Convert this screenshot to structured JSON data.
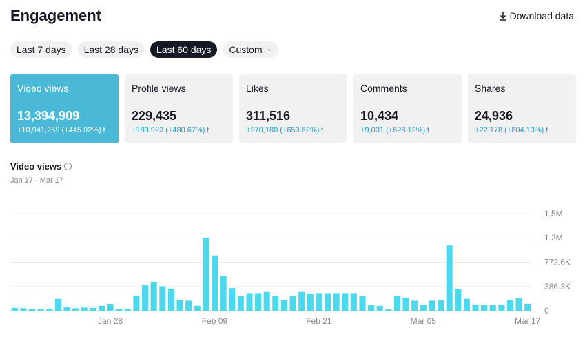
{
  "header": {
    "title": "Engagement",
    "download_label": "Download data"
  },
  "ranges": [
    {
      "label": "Last 7 days",
      "active": false
    },
    {
      "label": "Last 28 days",
      "active": false
    },
    {
      "label": "Last 60 days",
      "active": true
    },
    {
      "label": "Custom",
      "active": false
    }
  ],
  "cards": [
    {
      "label": "Video views",
      "value": "13,394,909",
      "delta": "+10,941,259 (+445.92%)",
      "active": true
    },
    {
      "label": "Profile views",
      "value": "229,435",
      "delta": "+189,923 (+480.67%)",
      "active": false
    },
    {
      "label": "Likes",
      "value": "311,516",
      "delta": "+270,180 (+653.62%)",
      "active": false
    },
    {
      "label": "Comments",
      "value": "10,434",
      "delta": "+9,001 (+628.12%)",
      "active": false
    },
    {
      "label": "Shares",
      "value": "24,936",
      "delta": "+22,178 (+804.13%)",
      "active": false
    }
  ],
  "chart_section": {
    "title": "Video views",
    "range": "Jan 17 - Mar 17"
  },
  "colors": {
    "accent": "#4ab9d7",
    "bar": "#4dd9ed",
    "delta": "#1a9fbf",
    "dark": "#161823"
  },
  "chart_data": {
    "type": "bar",
    "title": "Video views",
    "y_ticks": [
      "1.5M",
      "1.2M",
      "772.6K",
      "386.3K",
      "0"
    ],
    "y_tick_values": [
      1545200,
      1159000,
      772600,
      386300,
      0
    ],
    "ylim": [
      0,
      1545200
    ],
    "x_tick_labels": [
      "Jan 28",
      "Feb 09",
      "Feb 21",
      "Mar 05",
      "Mar 17"
    ],
    "x_tick_indices": [
      11,
      23,
      35,
      47,
      59
    ],
    "grid": true,
    "values": [
      45000,
      40000,
      30000,
      25000,
      28000,
      190000,
      65000,
      40000,
      50000,
      45000,
      80000,
      110000,
      30000,
      25000,
      240000,
      410000,
      460000,
      390000,
      340000,
      170000,
      160000,
      80000,
      1160000,
      880000,
      560000,
      360000,
      230000,
      280000,
      280000,
      300000,
      240000,
      170000,
      230000,
      300000,
      270000,
      280000,
      280000,
      280000,
      280000,
      280000,
      230000,
      90000,
      80000,
      30000,
      240000,
      210000,
      160000,
      95000,
      160000,
      170000,
      1040000,
      340000,
      190000,
      100000,
      90000,
      90000,
      100000,
      170000,
      200000,
      110000
    ]
  }
}
